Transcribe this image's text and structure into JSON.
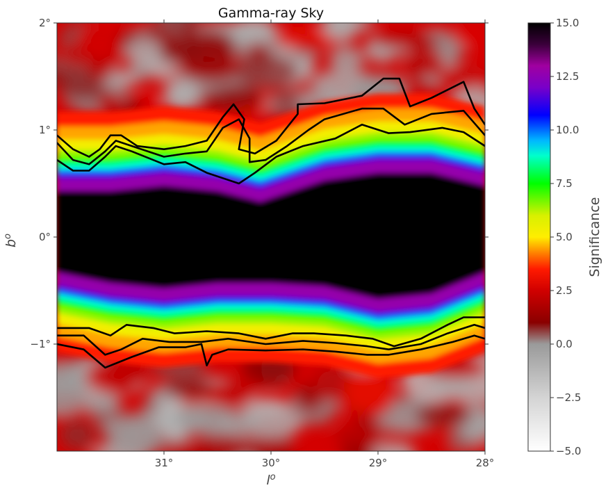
{
  "chart_data": {
    "type": "heatmap",
    "title": "Gamma-ray Sky",
    "xlabel": "l",
    "xlabel_sup": "o",
    "ylabel": "b",
    "ylabel_sup": "o",
    "colorbar_label": "Significance",
    "xlim": [
      32,
      28
    ],
    "ylim": [
      -2,
      2
    ],
    "x_ticks": [
      {
        "value": 31,
        "label": "31°"
      },
      {
        "value": 30,
        "label": "30°"
      },
      {
        "value": 29,
        "label": "29°"
      },
      {
        "value": 28,
        "label": "28°"
      }
    ],
    "y_ticks": [
      {
        "value": 2,
        "label": "2°"
      },
      {
        "value": 1,
        "label": "1°"
      },
      {
        "value": 0,
        "label": "0°"
      },
      {
        "value": -1,
        "label": "−1°"
      }
    ],
    "colorbar": {
      "min": -5.0,
      "max": 15.0,
      "ticks": [
        {
          "value": 15.0,
          "label": "15.0"
        },
        {
          "value": 12.5,
          "label": "12.5"
        },
        {
          "value": 10.0,
          "label": "10.0"
        },
        {
          "value": 7.5,
          "label": "7.5"
        },
        {
          "value": 5.0,
          "label": "5.0"
        },
        {
          "value": 2.5,
          "label": "2.5"
        },
        {
          "value": 0.0,
          "label": "0.0"
        },
        {
          "value": -2.5,
          "label": "−2.5"
        },
        {
          "value": -5.0,
          "label": "−5.0"
        }
      ],
      "colormap_stops": [
        {
          "value": -5.0,
          "color": "#ffffff"
        },
        {
          "value": -2.5,
          "color": "#d4d4d4"
        },
        {
          "value": 0.0,
          "color": "#9a9a9a"
        },
        {
          "value": 1.0,
          "color": "#8a0000"
        },
        {
          "value": 2.5,
          "color": "#d00000"
        },
        {
          "value": 3.5,
          "color": "#ff1a00"
        },
        {
          "value": 4.2,
          "color": "#ff7a00"
        },
        {
          "value": 5.0,
          "color": "#ffee00"
        },
        {
          "value": 6.0,
          "color": "#d8f000"
        },
        {
          "value": 7.5,
          "color": "#00ff00"
        },
        {
          "value": 8.8,
          "color": "#00ffcc"
        },
        {
          "value": 9.5,
          "color": "#00b8ff"
        },
        {
          "value": 10.7,
          "color": "#0000ff"
        },
        {
          "value": 12.0,
          "color": "#7a00c8"
        },
        {
          "value": 13.0,
          "color": "#a000a0"
        },
        {
          "value": 14.0,
          "color": "#3a003a"
        },
        {
          "value": 15.0,
          "color": "#000000"
        }
      ]
    },
    "background_colors": {
      "low": "#a8a8a8",
      "mid": "#d40000"
    },
    "emission_band": {
      "description_level": "saturated ridge centered near b=0",
      "north_edge_b": [
        {
          "l": 32.0,
          "b": 0.55
        },
        {
          "l": 31.5,
          "b": 0.55
        },
        {
          "l": 31.0,
          "b": 0.6
        },
        {
          "l": 30.5,
          "b": 0.55
        },
        {
          "l": 30.1,
          "b": 0.45
        },
        {
          "l": 29.8,
          "b": 0.55
        },
        {
          "l": 29.5,
          "b": 0.65
        },
        {
          "l": 29.0,
          "b": 0.72
        },
        {
          "l": 28.5,
          "b": 0.72
        },
        {
          "l": 28.0,
          "b": 0.6
        }
      ],
      "south_edge_b": [
        {
          "l": 32.0,
          "b": -0.45
        },
        {
          "l": 31.5,
          "b": -0.55
        },
        {
          "l": 31.0,
          "b": -0.6
        },
        {
          "l": 30.5,
          "b": -0.55
        },
        {
          "l": 30.0,
          "b": -0.55
        },
        {
          "l": 29.5,
          "b": -0.58
        },
        {
          "l": 29.0,
          "b": -0.7
        },
        {
          "l": 28.5,
          "b": -0.65
        },
        {
          "l": 28.0,
          "b": -0.45
        }
      ]
    },
    "contours": [
      {
        "level": "outer-north",
        "points": [
          [
            32.0,
            0.95
          ],
          [
            31.85,
            0.82
          ],
          [
            31.7,
            0.75
          ],
          [
            31.6,
            0.82
          ],
          [
            31.5,
            0.95
          ],
          [
            31.4,
            0.95
          ],
          [
            31.25,
            0.85
          ],
          [
            31.0,
            0.82
          ],
          [
            30.8,
            0.85
          ],
          [
            30.6,
            0.9
          ],
          [
            30.45,
            1.12
          ],
          [
            30.35,
            1.24
          ],
          [
            30.25,
            1.1
          ],
          [
            30.3,
            0.82
          ],
          [
            30.15,
            0.78
          ],
          [
            29.95,
            0.9
          ],
          [
            29.75,
            1.15
          ],
          [
            29.75,
            1.24
          ],
          [
            29.5,
            1.25
          ],
          [
            29.15,
            1.32
          ],
          [
            28.95,
            1.48
          ],
          [
            28.8,
            1.48
          ],
          [
            28.7,
            1.22
          ],
          [
            28.5,
            1.3
          ],
          [
            28.2,
            1.45
          ],
          [
            28.1,
            1.2
          ],
          [
            28.0,
            1.05
          ]
        ]
      },
      {
        "level": "mid-north",
        "points": [
          [
            32.0,
            0.88
          ],
          [
            31.85,
            0.72
          ],
          [
            31.7,
            0.68
          ],
          [
            31.55,
            0.8
          ],
          [
            31.45,
            0.9
          ],
          [
            31.3,
            0.85
          ],
          [
            31.0,
            0.75
          ],
          [
            30.8,
            0.78
          ],
          [
            30.6,
            0.8
          ],
          [
            30.45,
            1.02
          ],
          [
            30.3,
            1.1
          ],
          [
            30.2,
            0.92
          ],
          [
            30.2,
            0.7
          ],
          [
            30.05,
            0.72
          ],
          [
            29.85,
            0.85
          ],
          [
            29.65,
            1.0
          ],
          [
            29.5,
            1.1
          ],
          [
            29.15,
            1.2
          ],
          [
            28.95,
            1.2
          ],
          [
            28.75,
            1.05
          ],
          [
            28.5,
            1.15
          ],
          [
            28.2,
            1.18
          ],
          [
            28.0,
            0.95
          ]
        ]
      },
      {
        "level": "inner-north",
        "points": [
          [
            32.0,
            0.72
          ],
          [
            31.85,
            0.62
          ],
          [
            31.7,
            0.62
          ],
          [
            31.55,
            0.75
          ],
          [
            31.45,
            0.85
          ],
          [
            31.3,
            0.8
          ],
          [
            31.0,
            0.68
          ],
          [
            30.8,
            0.7
          ],
          [
            30.6,
            0.6
          ],
          [
            30.45,
            0.55
          ],
          [
            30.3,
            0.5
          ],
          [
            30.15,
            0.6
          ],
          [
            29.95,
            0.75
          ],
          [
            29.7,
            0.85
          ],
          [
            29.4,
            0.92
          ],
          [
            29.15,
            1.05
          ],
          [
            28.9,
            0.97
          ],
          [
            28.7,
            0.98
          ],
          [
            28.4,
            1.02
          ],
          [
            28.2,
            0.98
          ],
          [
            28.0,
            0.85
          ]
        ]
      },
      {
        "level": "inner-south",
        "points": [
          [
            32.0,
            -0.85
          ],
          [
            31.7,
            -0.85
          ],
          [
            31.5,
            -0.92
          ],
          [
            31.35,
            -0.82
          ],
          [
            31.1,
            -0.85
          ],
          [
            30.9,
            -0.9
          ],
          [
            30.6,
            -0.88
          ],
          [
            30.3,
            -0.9
          ],
          [
            30.05,
            -0.95
          ],
          [
            29.8,
            -0.9
          ],
          [
            29.6,
            -0.9
          ],
          [
            29.3,
            -0.92
          ],
          [
            29.05,
            -0.95
          ],
          [
            28.85,
            -1.02
          ],
          [
            28.6,
            -0.95
          ],
          [
            28.35,
            -0.82
          ],
          [
            28.2,
            -0.75
          ],
          [
            28.0,
            -0.75
          ]
        ]
      },
      {
        "level": "mid-south",
        "points": [
          [
            32.0,
            -0.92
          ],
          [
            31.75,
            -0.92
          ],
          [
            31.55,
            -1.1
          ],
          [
            31.4,
            -1.05
          ],
          [
            31.2,
            -0.95
          ],
          [
            30.95,
            -0.98
          ],
          [
            30.65,
            -0.98
          ],
          [
            30.4,
            -0.95
          ],
          [
            30.05,
            -1.0
          ],
          [
            29.7,
            -0.97
          ],
          [
            29.4,
            -0.99
          ],
          [
            29.1,
            -1.02
          ],
          [
            28.9,
            -1.05
          ],
          [
            28.6,
            -1.0
          ],
          [
            28.35,
            -0.9
          ],
          [
            28.1,
            -0.82
          ],
          [
            28.0,
            -0.85
          ]
        ]
      },
      {
        "level": "outer-south",
        "points": [
          [
            32.0,
            -1.0
          ],
          [
            31.75,
            -1.05
          ],
          [
            31.55,
            -1.22
          ],
          [
            31.3,
            -1.12
          ],
          [
            31.05,
            -1.03
          ],
          [
            30.8,
            -1.03
          ],
          [
            30.65,
            -1.0
          ],
          [
            30.6,
            -1.2
          ],
          [
            30.55,
            -1.1
          ],
          [
            30.4,
            -1.05
          ],
          [
            30.05,
            -1.06
          ],
          [
            29.7,
            -1.05
          ],
          [
            29.4,
            -1.07
          ],
          [
            29.1,
            -1.1
          ],
          [
            28.9,
            -1.1
          ],
          [
            28.6,
            -1.05
          ],
          [
            28.3,
            -0.98
          ],
          [
            28.1,
            -0.92
          ],
          [
            28.0,
            -0.95
          ]
        ]
      }
    ]
  }
}
